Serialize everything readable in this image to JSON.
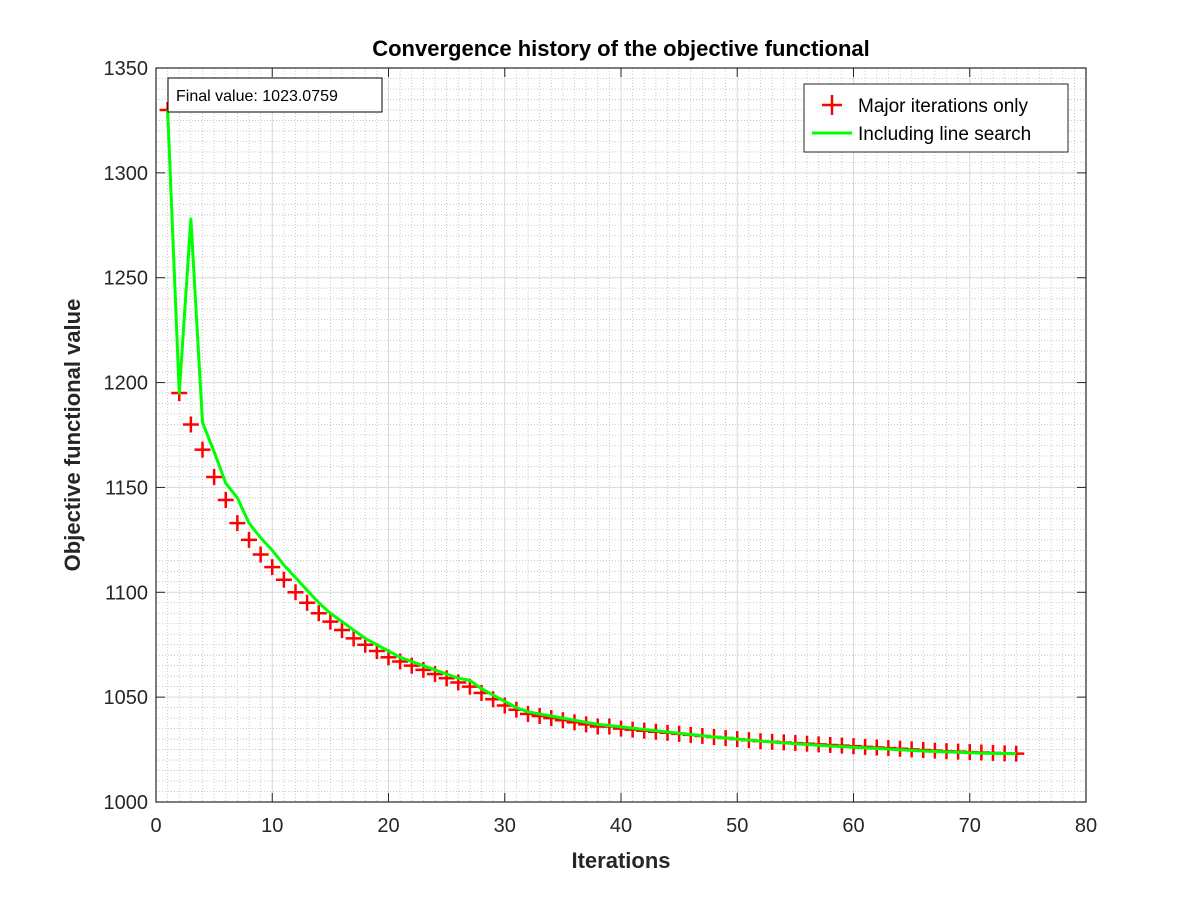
{
  "chart_data": {
    "type": "line",
    "title": "Convergence history of the objective functional",
    "xlabel": "Iterations",
    "ylabel": "Objective functional value",
    "xlim": [
      0,
      80
    ],
    "ylim": [
      1000,
      1350
    ],
    "xticks": [
      0,
      10,
      20,
      30,
      40,
      50,
      60,
      70,
      80
    ],
    "yticks": [
      1000,
      1050,
      1100,
      1150,
      1200,
      1250,
      1300,
      1350
    ],
    "grid": true,
    "minor_grid": true,
    "legend_position": "top-right",
    "annotation": "Final value: 1023.0759",
    "series": [
      {
        "name": "Major iterations only",
        "style": "marker",
        "marker": "+",
        "color": "#ff0000",
        "x": [
          1,
          2,
          3,
          4,
          5,
          6,
          7,
          8,
          9,
          10,
          11,
          12,
          13,
          14,
          15,
          16,
          17,
          18,
          19,
          20,
          21,
          22,
          23,
          24,
          25,
          26,
          27,
          28,
          29,
          30,
          31,
          32,
          33,
          34,
          35,
          36,
          37,
          38,
          39,
          40,
          41,
          42,
          43,
          44,
          45,
          46,
          47,
          48,
          49,
          50,
          51,
          52,
          53,
          54,
          55,
          56,
          57,
          58,
          59,
          60,
          61,
          62,
          63,
          64,
          65,
          66,
          67,
          68,
          69,
          70,
          71,
          72,
          73,
          74
        ],
        "y": [
          1330,
          1195,
          1180,
          1168,
          1155,
          1144,
          1133,
          1125,
          1118,
          1112,
          1106,
          1100,
          1095,
          1090,
          1086,
          1082,
          1078,
          1075,
          1072,
          1069,
          1067,
          1065,
          1063,
          1061,
          1059,
          1057,
          1055,
          1052,
          1049,
          1046,
          1044,
          1042,
          1041,
          1040,
          1039,
          1038,
          1037,
          1036,
          1036,
          1035,
          1034.5,
          1034,
          1033.5,
          1033,
          1032.5,
          1032,
          1031.5,
          1031,
          1030.5,
          1030,
          1029.5,
          1029,
          1028.7,
          1028.4,
          1028.1,
          1027.8,
          1027.5,
          1027.2,
          1026.9,
          1026.6,
          1026.3,
          1026,
          1025.7,
          1025.4,
          1025.1,
          1024.8,
          1024.5,
          1024.2,
          1024,
          1023.8,
          1023.6,
          1023.4,
          1023.2,
          1023.0759
        ]
      },
      {
        "name": "Including line search",
        "style": "line",
        "color": "#00ff00",
        "x": [
          1,
          2,
          3,
          4,
          5,
          6,
          7,
          8,
          9,
          10,
          11,
          12,
          13,
          14,
          15,
          16,
          17,
          18,
          19,
          20,
          21,
          22,
          23,
          24,
          25,
          26,
          27,
          28,
          29,
          30,
          31,
          32,
          33,
          34,
          35,
          36,
          37,
          38,
          39,
          40,
          41,
          42,
          43,
          44,
          45,
          46,
          47,
          48,
          49,
          50,
          51,
          52,
          53,
          54,
          55,
          56,
          57,
          58,
          59,
          60,
          61,
          62,
          63,
          64,
          65,
          66,
          67,
          68,
          69,
          70,
          71,
          72,
          73,
          74
        ],
        "y": [
          1330,
          1195,
          1278,
          1181,
          1167,
          1152,
          1145,
          1133,
          1126,
          1120,
          1113,
          1107,
          1101,
          1095,
          1090,
          1086,
          1082,
          1078,
          1075,
          1072,
          1069,
          1067,
          1065,
          1063,
          1061,
          1059,
          1058,
          1054,
          1051,
          1048,
          1045,
          1043,
          1042,
          1041,
          1040,
          1039,
          1038,
          1037,
          1036.5,
          1035.8,
          1035.2,
          1034.6,
          1034,
          1033.4,
          1032.8,
          1032.2,
          1031.6,
          1031,
          1030.5,
          1030,
          1029.5,
          1029,
          1028.6,
          1028.2,
          1027.8,
          1027.4,
          1027,
          1026.7,
          1026.4,
          1026.1,
          1025.8,
          1025.5,
          1025.2,
          1024.9,
          1024.6,
          1024.3,
          1024.1,
          1023.9,
          1023.7,
          1023.5,
          1023.3,
          1023.2,
          1023.1,
          1023.0759
        ]
      }
    ]
  }
}
